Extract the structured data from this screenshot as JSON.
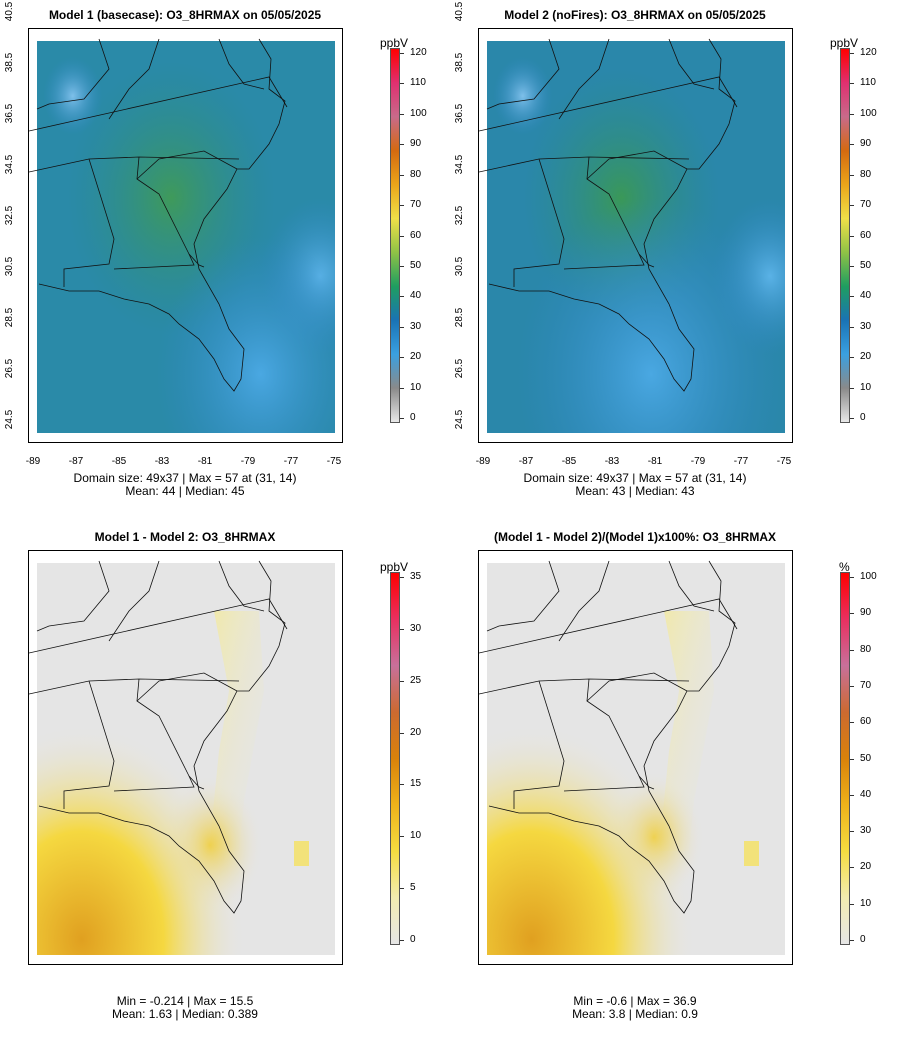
{
  "panels": [
    {
      "id": "p1",
      "title": "Model 1 (basecase): O3_8HRMAX on 05/05/2025",
      "y_ticks": [
        "40.5",
        "38.5",
        "36.5",
        "34.5",
        "32.5",
        "30.5",
        "28.5",
        "26.5",
        "24.5"
      ],
      "x_ticks": [
        "-89",
        "-87",
        "-85",
        "-83",
        "-81",
        "-79",
        "-77",
        "-75"
      ],
      "stats_line1": "Domain size: 49x37 | Max = 57 at (31, 14)",
      "stats_line2": "Mean: 44 |  Median: 45",
      "colorbar": {
        "unit": "ppbV",
        "ticks": [
          "0",
          "10",
          "20",
          "30",
          "40",
          "50",
          "60",
          "70",
          "80",
          "90",
          "100",
          "110",
          "120"
        ],
        "stops": [
          "#e8e8e8",
          "#8a8a8a",
          "#3aa0e0",
          "#1a73b5",
          "#1f9e60",
          "#8fc246",
          "#f0e048",
          "#eaa51a",
          "#d46a10",
          "#c86a8a",
          "#e03070",
          "#ff0000"
        ]
      }
    },
    {
      "id": "p2",
      "title": "Model 2 (noFires): O3_8HRMAX on 05/05/2025",
      "y_ticks": [
        "40.5",
        "38.5",
        "36.5",
        "34.5",
        "32.5",
        "30.5",
        "28.5",
        "26.5",
        "24.5"
      ],
      "x_ticks": [
        "-89",
        "-87",
        "-85",
        "-83",
        "-81",
        "-79",
        "-77",
        "-75"
      ],
      "stats_line1": "Domain size: 49x37 | Max = 57 at (31, 14)",
      "stats_line2": "Mean: 43 |  Median: 43",
      "colorbar": {
        "unit": "ppbV",
        "ticks": [
          "0",
          "10",
          "20",
          "30",
          "40",
          "50",
          "60",
          "70",
          "80",
          "90",
          "100",
          "110",
          "120"
        ],
        "stops": [
          "#e8e8e8",
          "#8a8a8a",
          "#3aa0e0",
          "#1a73b5",
          "#1f9e60",
          "#8fc246",
          "#f0e048",
          "#eaa51a",
          "#d46a10",
          "#c86a8a",
          "#e03070",
          "#ff0000"
        ]
      }
    },
    {
      "id": "p3",
      "title": "Model 1 - Model 2: O3_8HRMAX",
      "stats_line1": "Min = -0.214 | Max = 15.5",
      "stats_line2": "Mean: 1.63 |  Median: 0.389",
      "colorbar": {
        "unit": "ppbV",
        "ticks": [
          "0",
          "5",
          "10",
          "15",
          "20",
          "25",
          "30",
          "35"
        ],
        "stops": [
          "#e6e6e6",
          "#f3ecb0",
          "#f5dc40",
          "#eeb21a",
          "#d9820a",
          "#cc6a30",
          "#c8709a",
          "#e83060",
          "#ff0000"
        ]
      }
    },
    {
      "id": "p4",
      "title": "(Model 1 - Model 2)/(Model 1)x100%: O3_8HRMAX",
      "stats_line1": "Min = -0.6 | Max = 36.9",
      "stats_line2": "Mean: 3.8 |  Median: 0.9",
      "colorbar": {
        "unit": "%",
        "ticks": [
          "0",
          "10",
          "20",
          "30",
          "40",
          "50",
          "60",
          "70",
          "80",
          "90",
          "100"
        ],
        "stops": [
          "#e6e6e6",
          "#f3ecb0",
          "#f5dc40",
          "#eeb21a",
          "#d9820a",
          "#cc6a30",
          "#c8709a",
          "#e83060",
          "#ff0000"
        ]
      }
    }
  ]
}
